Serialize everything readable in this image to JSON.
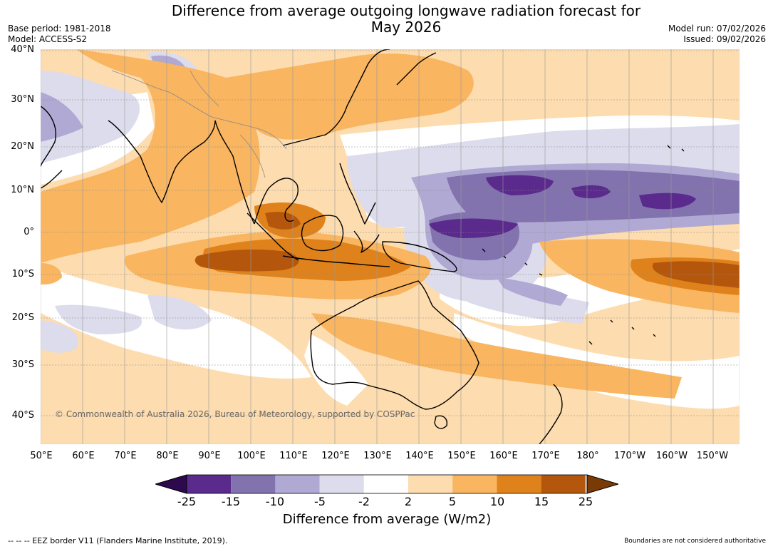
{
  "title_line1": "Difference from average outgoing longwave radiation forecast for",
  "title_line2": "May 2026",
  "base_period": "Base period: 1981-2018",
  "model": "Model: ACCESS-S2",
  "model_run": "Model run: 07/02/2026",
  "issued": "Issued: 09/02/2026",
  "lat_labels": [
    "40°N",
    "30°N",
    "20°N",
    "10°N",
    "0°",
    "10°S",
    "20°S",
    "30°S",
    "40°S"
  ],
  "lon_labels": [
    "50°E",
    "60°E",
    "70°E",
    "80°E",
    "90°E",
    "100°E",
    "110°E",
    "120°E",
    "130°E",
    "140°E",
    "150°E",
    "160°E",
    "170°E",
    "180°",
    "170°W",
    "160°W",
    "150°W"
  ],
  "colorbar": {
    "ticks": [
      "-25",
      "-15",
      "-10",
      "-5",
      "-2",
      "2",
      "5",
      "10",
      "15",
      "25"
    ],
    "label": "Difference from average (W/m2)",
    "colors": [
      "#2d0a4e",
      "#5a2a8c",
      "#8272ad",
      "#b0a9d3",
      "#dcdcec",
      "#ffffff",
      "#fddcaf",
      "#f9b560",
      "#e0821b",
      "#b4570c",
      "#7a3a06"
    ]
  },
  "copyright": "© Commonwealth of Australia 2026, Bureau of Meteorology, supported by COSPPac",
  "footer_left": "--  --  -- EEZ border V11 (Flanders Marine Institute, 2019).",
  "footer_right": "Boundaries are not considered authoritative"
}
